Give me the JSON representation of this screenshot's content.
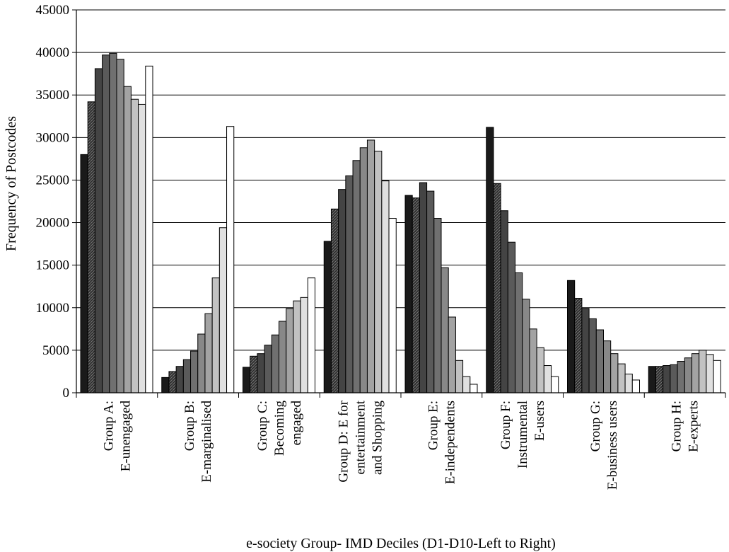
{
  "chart_data": {
    "type": "bar",
    "title": "",
    "xlabel": "e-society Group- IMD Deciles (D1-D10-Left to Right)",
    "ylabel": "Frequency of Postcodes",
    "ylim": [
      0,
      45000
    ],
    "yticks": [
      0,
      5000,
      10000,
      15000,
      20000,
      25000,
      30000,
      35000,
      40000,
      45000
    ],
    "grid": true,
    "legend": "none",
    "categories": [
      [
        "Group A:",
        "E-unengaged"
      ],
      [
        "Group B:",
        "E-marginalised"
      ],
      [
        "Group C:",
        "Becoming",
        "engaged"
      ],
      [
        "Group D: E for",
        "entertainment",
        "and Shopping"
      ],
      [
        "Group E:",
        "E-independents"
      ],
      [
        "Group F:",
        "Instrumental",
        "E-users"
      ],
      [
        "Group G:",
        "E-business users"
      ],
      [
        "Group H:",
        "E-experts"
      ]
    ],
    "series": [
      {
        "values": [
          28000,
          1800,
          3000,
          17800,
          23200,
          31200,
          13200,
          3100
        ],
        "color": "#1a1a1a"
      },
      {
        "values": [
          34200,
          2500,
          4300,
          21600,
          22900,
          24600,
          11100,
          3100
        ],
        "color": "#2e2e2e",
        "pattern": "dotted"
      },
      {
        "values": [
          38100,
          3100,
          4600,
          23900,
          24700,
          21400,
          9900,
          3200
        ],
        "color": "#444444"
      },
      {
        "values": [
          39700,
          3900,
          5600,
          25500,
          23700,
          17700,
          8700,
          3300
        ],
        "color": "#5a5a5a"
      },
      {
        "values": [
          39900,
          4900,
          6800,
          27300,
          20500,
          14100,
          7400,
          3700
        ],
        "color": "#707070"
      },
      {
        "values": [
          39200,
          6900,
          8400,
          28800,
          14700,
          11000,
          6100,
          4100
        ],
        "color": "#888888"
      },
      {
        "values": [
          36000,
          9300,
          9900,
          29700,
          8900,
          7500,
          4600,
          4600
        ],
        "color": "#a3a3a3"
      },
      {
        "values": [
          34500,
          13500,
          10800,
          28400,
          3800,
          5300,
          3400,
          5000
        ],
        "color": "#c2c2c2"
      },
      {
        "values": [
          33900,
          19400,
          11200,
          24900,
          1900,
          3200,
          2200,
          4500
        ],
        "color": "#e0e0e0"
      },
      {
        "values": [
          38400,
          31300,
          13500,
          20500,
          1000,
          1900,
          1500,
          3800
        ],
        "color": "#ffffff"
      }
    ]
  }
}
